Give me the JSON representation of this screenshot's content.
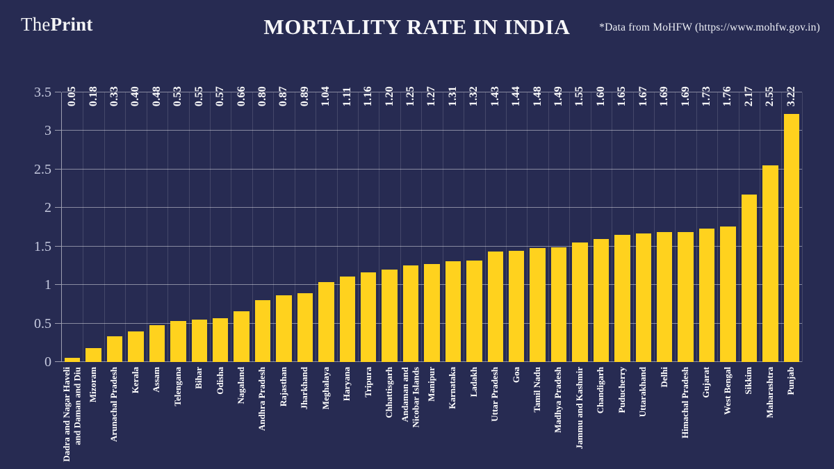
{
  "header": {
    "logo_the": "The",
    "logo_print": "Print",
    "title": "MORTALITY RATE IN INDIA",
    "source_note": "*Data from MoHFW (https://www.mohfw.gov.in)"
  },
  "chart_data": {
    "type": "bar",
    "title": "MORTALITY RATE IN INDIA",
    "xlabel": "",
    "ylabel": "",
    "ylim": [
      0,
      3.5
    ],
    "yticks": [
      0,
      0.5,
      1,
      1.5,
      2,
      2.5,
      3,
      3.5
    ],
    "ytick_labels": [
      "0",
      "0.5",
      "1",
      "1.5",
      "2",
      "2.5",
      "3",
      "3.5"
    ],
    "grid": true,
    "legend_position": "none",
    "background_color": "#272B52",
    "bar_color": "#FFD21E",
    "categories": [
      "Dadra and Nagar Haveli\nand Daman and Diu",
      "Mizoram",
      "Arunachal Pradesh",
      "Kerala",
      "Assam",
      "Telengana",
      "Bihar",
      "Odisha",
      "Nagaland",
      "Andhra Pradesh",
      "Rajasthan",
      "Jharkhand",
      "Meghalaya",
      "Haryana",
      "Tripura",
      "Chhattisgarh",
      "Andaman and\nNicobar Islands",
      "Manipur",
      "Karnataka",
      "Ladakh",
      "Uttar Pradesh",
      "Goa",
      "Tamil Nadu",
      "Madhya Pradesh",
      "Jammu and Kashmir",
      "Chandigarh",
      "Puducherry",
      "Uttarakhand",
      "Delhi",
      "Himachal Pradesh",
      "Gujarat",
      "West Bengal",
      "Sikkim",
      "Maharashtra",
      "Punjab"
    ],
    "values": [
      0.05,
      0.18,
      0.33,
      0.4,
      0.48,
      0.53,
      0.55,
      0.57,
      0.66,
      0.8,
      0.87,
      0.89,
      1.04,
      1.11,
      1.16,
      1.2,
      1.25,
      1.27,
      1.31,
      1.32,
      1.43,
      1.44,
      1.48,
      1.49,
      1.55,
      1.6,
      1.65,
      1.67,
      1.69,
      1.69,
      1.73,
      1.76,
      2.17,
      2.55,
      3.22
    ],
    "value_labels": [
      "0.05",
      "0.18",
      "0.33",
      "0.40",
      "0.48",
      "0.53",
      "0.55",
      "0.57",
      "0.66",
      "0.80",
      "0.87",
      "0.89",
      "1.04",
      "1.11",
      "1.16",
      "1.20",
      "1.25",
      "1.27",
      "1.31",
      "1.32",
      "1.43",
      "1.44",
      "1.48",
      "1.49",
      "1.55",
      "1.60",
      "1.65",
      "1.67",
      "1.69",
      "1.69",
      "1.73",
      "1.76",
      "2.17",
      "2.55",
      "3.22"
    ]
  }
}
